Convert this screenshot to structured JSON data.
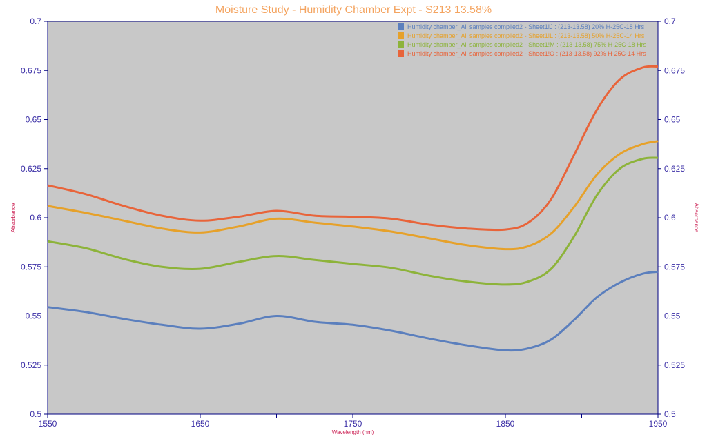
{
  "chart_data": {
    "type": "line",
    "title": "Moisture Study - Humidity Chamber Expt - S213 13.58%",
    "xlabel": "Wavelength (nm)",
    "ylabel": "Absorbance",
    "ylabel_right": "Absorbance",
    "xlim": [
      1550,
      1950
    ],
    "ylim": [
      0.5,
      0.7
    ],
    "x_ticks": [
      "1550",
      "1650",
      "1750",
      "1850",
      "1950"
    ],
    "y_ticks": [
      "0.5",
      "0.525",
      "0.55",
      "0.575",
      "0.6",
      "0.625",
      "0.65",
      "0.675",
      "0.7"
    ],
    "grid": false,
    "legend_position": "top-right",
    "x": [
      1550,
      1575,
      1600,
      1625,
      1650,
      1675,
      1700,
      1725,
      1750,
      1775,
      1800,
      1825,
      1850,
      1865,
      1880,
      1895,
      1910,
      1925,
      1940,
      1950
    ],
    "series": [
      {
        "name": "Humidity chamber_All samples compiled2 - Sheet1!J : (213-13.58) 20% H-25C-18 Hrs",
        "color": "#5b7fbd",
        "values": [
          0.5545,
          0.552,
          0.5485,
          0.5455,
          0.5435,
          0.546,
          0.55,
          0.547,
          0.5455,
          0.5425,
          0.5385,
          0.535,
          0.5325,
          0.5335,
          0.538,
          0.548,
          0.5595,
          0.567,
          0.5715,
          0.5725
        ]
      },
      {
        "name": "Humidity chamber_All samples compiled2 - Sheet1!L : (213-13.58) 50% H-25C-14 Hrs",
        "color": "#e6a12a",
        "values": [
          0.606,
          0.6025,
          0.5985,
          0.5945,
          0.5925,
          0.5955,
          0.5995,
          0.5975,
          0.5955,
          0.593,
          0.5895,
          0.586,
          0.584,
          0.5855,
          0.592,
          0.6055,
          0.622,
          0.6325,
          0.6375,
          0.639
        ]
      },
      {
        "name": "Humidity chamber_All samples compiled2 - Sheet1!M : (213-13.58) 75% H-25C-18 Hrs",
        "color": "#8db33a",
        "values": [
          0.588,
          0.5845,
          0.579,
          0.575,
          0.574,
          0.5775,
          0.5805,
          0.5785,
          0.5765,
          0.5745,
          0.5705,
          0.5675,
          0.566,
          0.5675,
          0.574,
          0.5905,
          0.6115,
          0.625,
          0.63,
          0.6305
        ]
      },
      {
        "name": "Humidity chamber_All samples compiled2 - Sheet1!O : (213-13.58) 92% H-25C-14 Hrs",
        "color": "#e8643a",
        "values": [
          0.6165,
          0.612,
          0.606,
          0.601,
          0.5985,
          0.6005,
          0.6035,
          0.601,
          0.6005,
          0.5995,
          0.5965,
          0.5945,
          0.594,
          0.5975,
          0.6095,
          0.632,
          0.655,
          0.6705,
          0.6765,
          0.677
        ]
      }
    ]
  }
}
